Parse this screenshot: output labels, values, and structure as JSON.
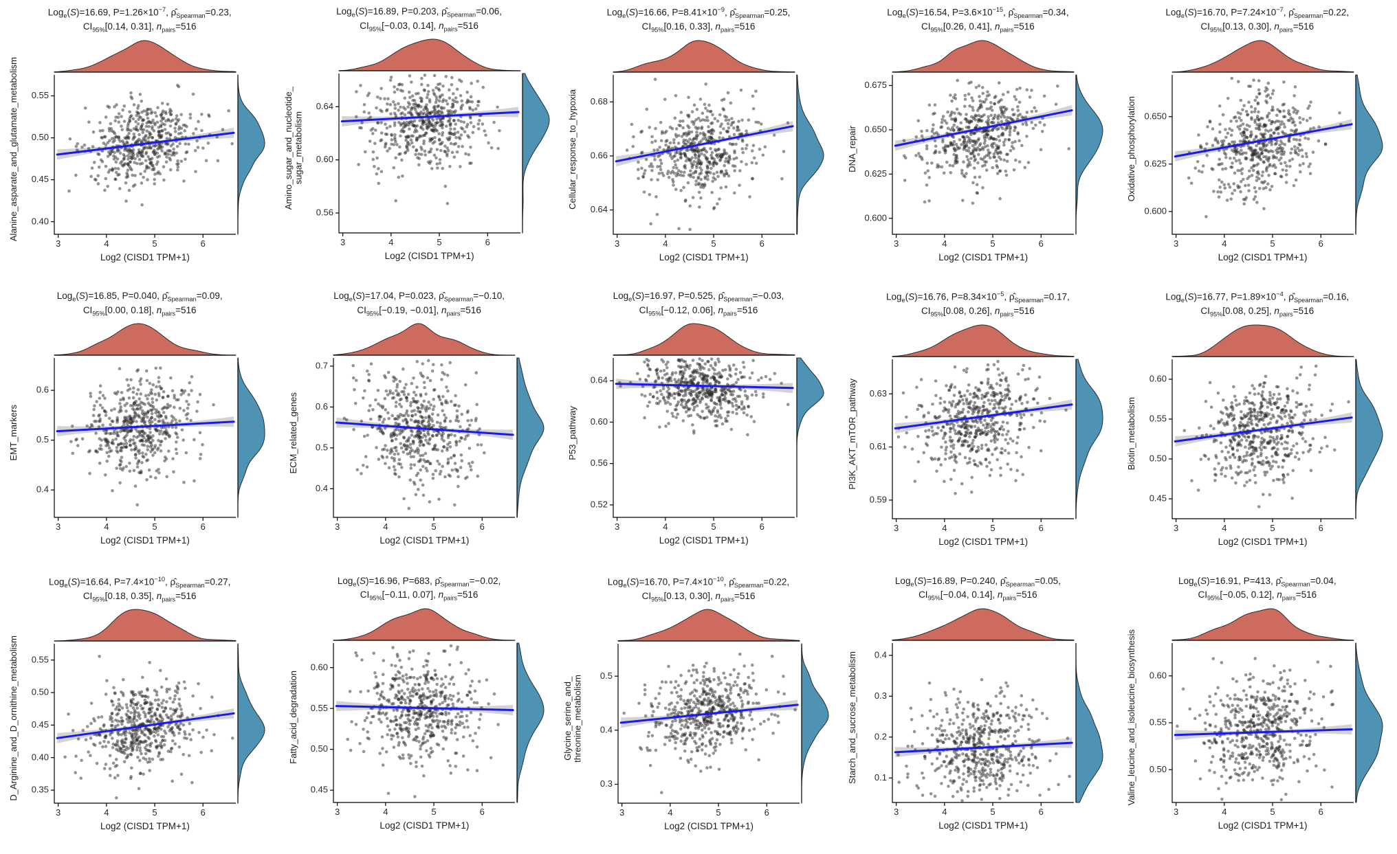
{
  "figure": {
    "xlabel": "Log2 (CISD1 TPM+1)",
    "x_ticks": [
      "3",
      "4",
      "5",
      "6"
    ],
    "x_tick_values": [
      3,
      4,
      5,
      6
    ],
    "x_range": [
      2.92,
      6.68
    ],
    "x_mean": 4.72,
    "x_sd": 0.58,
    "n_points": 516,
    "colors": {
      "top_density_fill": "#cd6b5e",
      "right_density_fill": "#4e93b4",
      "density_stroke": "#2b2b2b",
      "trend_line": "#1a1af0",
      "confidence_band": "rgba(130,130,130,0.35)",
      "scatter_point": "rgba(42,42,42,0.5)",
      "axis": "#000000",
      "tick_label": "#2a2a2a"
    }
  },
  "chart_data": [
    {
      "type": "scatter",
      "ylabel": "Alanine_asparate_and_glutamate_metabolism",
      "title_line1": "Log~e~(*S*)=16.69, P=1.26×10^−7^, ρ̂~Spearman~=0.23,",
      "title_line2": "CI~95%~[0.14, 0.31], *n*~pairs~=516",
      "stats": {
        "loge_s": 16.69,
        "p": "1.26×10⁻⁷",
        "rho_spearman": 0.23,
        "ci_95": [
          0.14,
          0.31
        ],
        "n_pairs": 516
      },
      "y_ticks": [
        "0.40",
        "0.45",
        "0.50",
        "0.55"
      ],
      "y_tick_values": [
        0.4,
        0.45,
        0.5,
        0.55
      ],
      "y_range": [
        0.385,
        0.575
      ],
      "y_center": 0.492,
      "y_sd": 0.024,
      "trend_y": [
        0.48,
        0.506
      ]
    },
    {
      "type": "scatter",
      "ylabel": "Amino_sugar_and_nucleotide_\nsugar_metabolism",
      "title_line1": "Log~e~(*S*)=16.89, P=0.203, ρ̂~Spearman~=0.06,",
      "title_line2": "CI~95%~[−0.03, 0.14], *n*~pairs~=516",
      "stats": {
        "loge_s": 16.89,
        "p": "0.203",
        "rho_spearman": 0.06,
        "ci_95": [
          -0.03,
          0.14
        ],
        "n_pairs": 516
      },
      "y_ticks": [
        "0.56",
        "0.60",
        "0.64"
      ],
      "y_tick_values": [
        0.56,
        0.6,
        0.64
      ],
      "y_range": [
        0.545,
        0.665
      ],
      "y_center": 0.63,
      "y_sd": 0.018,
      "trend_y": [
        0.629,
        0.636
      ]
    },
    {
      "type": "scatter",
      "ylabel": "Cellular_response_to_hypoxia",
      "title_line1": "Log~e~(*S*)=16.66, P=8.41×10^−9^, ρ̂~Spearman~=0.25,",
      "title_line2": "CI~95%~[0.16, 0.33], *n*~pairs~=516",
      "stats": {
        "loge_s": 16.66,
        "p": "8.41×10⁻⁹",
        "rho_spearman": 0.25,
        "ci_95": [
          0.16,
          0.33
        ],
        "n_pairs": 516
      },
      "y_ticks": [
        "0.64",
        "0.66",
        "0.68"
      ],
      "y_tick_values": [
        0.64,
        0.66,
        0.68
      ],
      "y_range": [
        0.631,
        0.69
      ],
      "y_center": 0.663,
      "y_sd": 0.0095,
      "trend_y": [
        0.658,
        0.671
      ]
    },
    {
      "type": "scatter",
      "ylabel": "DNA_repair",
      "title_line1": "Log~e~(*S*)=16.54, P=3.6×10^−15^, ρ̂~Spearman~=0.34,",
      "title_line2": "CI~95%~[0.26, 0.41], *n*~pairs~=516",
      "stats": {
        "loge_s": 16.54,
        "p": "3.6×10⁻¹⁵",
        "rho_spearman": 0.34,
        "ci_95": [
          0.26,
          0.41
        ],
        "n_pairs": 516
      },
      "y_ticks": [
        "0.600",
        "0.625",
        "0.650",
        "0.675"
      ],
      "y_tick_values": [
        0.6,
        0.625,
        0.65,
        0.675
      ],
      "y_range": [
        0.591,
        0.681
      ],
      "y_center": 0.648,
      "y_sd": 0.0135,
      "trend_y": [
        0.641,
        0.661
      ]
    },
    {
      "type": "scatter",
      "ylabel": "Oxidative_phosphorylation",
      "title_line1": "Log~e~(*S*)=16.70, P=7.24×10^−7^, ρ̂~Spearman~=0.22,",
      "title_line2": "CI~95%~[0.13, 0.30], *n*~pairs~=516",
      "stats": {
        "loge_s": 16.7,
        "p": "7.24×10⁻⁷",
        "rho_spearman": 0.22,
        "ci_95": [
          0.13,
          0.3
        ],
        "n_pairs": 516
      },
      "y_ticks": [
        "0.600",
        "0.625",
        "0.650"
      ],
      "y_tick_values": [
        0.6,
        0.625,
        0.65
      ],
      "y_range": [
        0.588,
        0.672
      ],
      "y_center": 0.636,
      "y_sd": 0.014,
      "trend_y": [
        0.629,
        0.646
      ]
    },
    {
      "type": "scatter",
      "ylabel": "EMT_markers",
      "title_line1": "Log~e~(*S*)=16.85, P=0.040, ρ̂~Spearman~=0.09,",
      "title_line2": "CI~95%~[0.00, 0.18], *n*~pairs~=516",
      "stats": {
        "loge_s": 16.85,
        "p": "0.040",
        "rho_spearman": 0.09,
        "ci_95": [
          0.0,
          0.18
        ],
        "n_pairs": 516
      },
      "y_ticks": [
        "0.4",
        "0.5",
        "0.6"
      ],
      "y_tick_values": [
        0.4,
        0.5,
        0.6
      ],
      "y_range": [
        0.345,
        0.665
      ],
      "y_center": 0.525,
      "y_sd": 0.05,
      "trend_y": [
        0.518,
        0.537
      ]
    },
    {
      "type": "scatter",
      "ylabel": "ECM_related_genes",
      "title_line1": "Log~e~(*S*)=17.04, P=0.023, ρ̂~Spearman~=−0.10,",
      "title_line2": "CI~95%~[−0.19, −0.01], *n*~pairs~=516",
      "stats": {
        "loge_s": 17.04,
        "p": "0.023",
        "rho_spearman": -0.1,
        "ci_95": [
          -0.19,
          -0.01
        ],
        "n_pairs": 516
      },
      "y_ticks": [
        "0.4",
        "0.5",
        "0.6",
        "0.7"
      ],
      "y_tick_values": [
        0.4,
        0.5,
        0.6,
        0.7
      ],
      "y_range": [
        0.33,
        0.72
      ],
      "y_center": 0.55,
      "y_sd": 0.068,
      "trend_y": [
        0.562,
        0.532
      ]
    },
    {
      "type": "scatter",
      "ylabel": "P53_pathway",
      "title_line1": "Log~e~(*S*)=16.97, P=0.525, ρ̂~Spearman~=−0.03,",
      "title_line2": "CI~95%~[−0.12, 0.06], *n*~pairs~=516",
      "stats": {
        "loge_s": 16.97,
        "p": "0.525",
        "rho_spearman": -0.03,
        "ci_95": [
          -0.12,
          0.06
        ],
        "n_pairs": 516
      },
      "y_ticks": [
        "0.52",
        "0.56",
        "0.60",
        "0.64"
      ],
      "y_tick_values": [
        0.52,
        0.56,
        0.6,
        0.64
      ],
      "y_range": [
        0.508,
        0.662
      ],
      "y_center": 0.633,
      "y_sd": 0.016,
      "trend_y": [
        0.637,
        0.633
      ]
    },
    {
      "type": "scatter",
      "ylabel": "PI3K_AKT_mTOR_pathway",
      "title_line1": "Log~e~(*S*)=16.76, P=8.34×10^−5^, ρ̂~Spearman~=0.17,",
      "title_line2": "CI~95%~[0.08, 0.26], *n*~pairs~=516",
      "stats": {
        "loge_s": 16.76,
        "p": "8.34×10⁻⁵",
        "rho_spearman": 0.17,
        "ci_95": [
          0.08,
          0.26
        ],
        "n_pairs": 516
      },
      "y_ticks": [
        "0.59",
        "0.61",
        "0.63"
      ],
      "y_tick_values": [
        0.59,
        0.61,
        0.63
      ],
      "y_range": [
        0.583,
        0.643
      ],
      "y_center": 0.62,
      "y_sd": 0.0098,
      "trend_y": [
        0.617,
        0.626
      ]
    },
    {
      "type": "scatter",
      "ylabel": "Biotin_metabolism",
      "title_line1": "Log~e~(*S*)=16.77, P=1.89×10^−4^, ρ̂~Spearman~=0.16,",
      "title_line2": "CI~95%~[0.08, 0.25], *n*~pairs~=516",
      "stats": {
        "loge_s": 16.77,
        "p": "1.89×10⁻⁴",
        "rho_spearman": 0.16,
        "ci_95": [
          0.08,
          0.25
        ],
        "n_pairs": 516
      },
      "y_ticks": [
        "0.45",
        "0.50",
        "0.55",
        "0.60"
      ],
      "y_tick_values": [
        0.45,
        0.5,
        0.55,
        0.6
      ],
      "y_range": [
        0.425,
        0.625
      ],
      "y_center": 0.535,
      "y_sd": 0.032,
      "trend_y": [
        0.522,
        0.552
      ]
    },
    {
      "type": "scatter",
      "ylabel": "D_Arginine_and_D_ornithine_metabolism",
      "title_line1": "Log~e~(*S*)=16.64, P=7.4×10^−10^, ρ̂~Spearman~=0.27,",
      "title_line2": "CI~95%~[0.18, 0.35], *n*~pairs~=516",
      "stats": {
        "loge_s": 16.64,
        "p": "7.4×10⁻¹⁰",
        "rho_spearman": 0.27,
        "ci_95": [
          0.18,
          0.35
        ],
        "n_pairs": 516
      },
      "y_ticks": [
        "0.35",
        "0.40",
        "0.45",
        "0.50",
        "0.55"
      ],
      "y_tick_values": [
        0.35,
        0.4,
        0.45,
        0.5,
        0.55
      ],
      "y_range": [
        0.33,
        0.575
      ],
      "y_center": 0.447,
      "y_sd": 0.033,
      "trend_y": [
        0.43,
        0.468
      ]
    },
    {
      "type": "scatter",
      "ylabel": "Fatty_acid_degradation",
      "title_line1": "Log~e~(*S*)=16.96, P=683, ρ̂~Spearman~=−0.02,",
      "title_line2": "CI~95%~[−0.11, 0.07], *n*~pairs~=516",
      "stats": {
        "loge_s": 16.96,
        "p": "683",
        "rho_spearman": -0.02,
        "ci_95": [
          -0.11,
          0.07
        ],
        "n_pairs": 516
      },
      "y_ticks": [
        "0.45",
        "0.50",
        "0.55",
        "0.60"
      ],
      "y_tick_values": [
        0.45,
        0.5,
        0.55,
        0.6
      ],
      "y_range": [
        0.435,
        0.63
      ],
      "y_center": 0.551,
      "y_sd": 0.032,
      "trend_y": [
        0.553,
        0.548
      ]
    },
    {
      "type": "scatter",
      "ylabel": "Glycine_serine_and_\nthreonine_metabolism",
      "title_line1": "Log~e~(*S*)=16.70, P=7.4×10^−10^, ρ̂~Spearman~=0.22,",
      "title_line2": "CI~95%~[0.13, 0.30], *n*~pairs~=516",
      "stats": {
        "loge_s": 16.7,
        "p": "7.4×10⁻¹⁰",
        "rho_spearman": 0.22,
        "ci_95": [
          0.13,
          0.3
        ],
        "n_pairs": 516
      },
      "y_ticks": [
        "0.3",
        "0.4",
        "0.5"
      ],
      "y_tick_values": [
        0.3,
        0.4,
        0.5
      ],
      "y_range": [
        0.265,
        0.56
      ],
      "y_center": 0.43,
      "y_sd": 0.04,
      "trend_y": [
        0.414,
        0.447
      ]
    },
    {
      "type": "scatter",
      "ylabel": "Starch_and_sucrose_metabolism",
      "title_line1": "Log~e~(*S*)=16.89, P=0.240, ρ̂~Spearman~=0.05,",
      "title_line2": "CI~95%~[−0.04, 0.14], *n*~pairs~=516",
      "stats": {
        "loge_s": 16.89,
        "p": "0.240",
        "rho_spearman": 0.05,
        "ci_95": [
          -0.04,
          0.14
        ],
        "n_pairs": 516
      },
      "y_ticks": [
        "0.1",
        "0.2",
        "0.3",
        "0.4"
      ],
      "y_tick_values": [
        0.1,
        0.2,
        0.3,
        0.4
      ],
      "y_range": [
        0.04,
        0.43
      ],
      "y_center": 0.175,
      "y_sd": 0.063,
      "trend_y": [
        0.163,
        0.186
      ]
    },
    {
      "type": "scatter",
      "ylabel": "Valine_leucine_and_isoleucine_biosynthesis",
      "title_line1": "Log~e~(*S*)=16.91, P=413, ρ̂~Spearman~=0.04,",
      "title_line2": "CI~95%~[−0.05, 0.12], *n*~pairs~=516",
      "stats": {
        "loge_s": 16.91,
        "p": "413",
        "rho_spearman": 0.04,
        "ci_95": [
          -0.05,
          0.12
        ],
        "n_pairs": 516
      },
      "y_ticks": [
        "0.50",
        "0.55",
        "0.60"
      ],
      "y_tick_values": [
        0.5,
        0.55,
        0.6
      ],
      "y_range": [
        0.465,
        0.635
      ],
      "y_center": 0.542,
      "y_sd": 0.028,
      "trend_y": [
        0.537,
        0.543
      ]
    }
  ]
}
